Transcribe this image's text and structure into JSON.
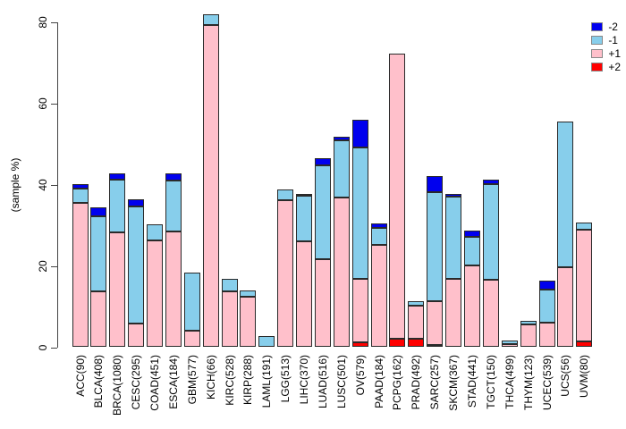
{
  "chart_data": {
    "type": "bar",
    "stacked": true,
    "title": "",
    "xlabel": "",
    "ylabel": "(sample %)",
    "ylim": [
      0,
      80
    ],
    "yticks": [
      0,
      20,
      40,
      60,
      80
    ],
    "grid": false,
    "legend_position": "top-right",
    "legend": [
      {
        "label": "-2",
        "color": "#0000EE"
      },
      {
        "label": "-1",
        "color": "#87CEEB"
      },
      {
        "label": "+1",
        "color": "#FFC0CB"
      },
      {
        "label": "+2",
        "color": "#FF0000"
      }
    ],
    "stack_order_bottom_to_top": [
      "+2",
      "+1",
      "-1",
      "-2"
    ],
    "categories": [
      "ACC(90)",
      "BLCA(408)",
      "BRCA(1080)",
      "CESC(295)",
      "COAD(451)",
      "ESCA(184)",
      "GBM(577)",
      "KICH(66)",
      "KIRC(528)",
      "KIRP(288)",
      "LAML(191)",
      "LGG(513)",
      "LIHC(370)",
      "LUAD(516)",
      "LUSC(501)",
      "OV(579)",
      "PAAD(184)",
      "PCPG(162)",
      "PRAD(492)",
      "SARC(257)",
      "SKCM(367)",
      "STAD(441)",
      "TGCT(150)",
      "THCA(499)",
      "THYM(123)",
      "UCEC(539)",
      "UCS(56)",
      "UVM(80)"
    ],
    "series": [
      {
        "name": "-2",
        "color": "#0000EE",
        "values": [
          1.1,
          2.1,
          1.5,
          1.7,
          0,
          1.9,
          0,
          0,
          0,
          0,
          0,
          0,
          0.5,
          1.8,
          0.9,
          6.8,
          1.1,
          0,
          0,
          4.0,
          0.6,
          1.6,
          1.0,
          0,
          0,
          2.2,
          0,
          0
        ]
      },
      {
        "name": "-1",
        "color": "#87CEEB",
        "values": [
          3.6,
          18.5,
          13.0,
          28.9,
          4.1,
          12.6,
          14.3,
          2.6,
          3.1,
          1.6,
          2.8,
          2.7,
          11.3,
          23.0,
          14.1,
          32.3,
          4.1,
          0,
          1.1,
          26.9,
          20.3,
          7.1,
          23.5,
          0.8,
          1.1,
          8.2,
          35.9,
          1.8
        ]
      },
      {
        "name": "+1",
        "color": "#FFC0CB",
        "values": [
          35.5,
          13.8,
          28.3,
          5.8,
          26.2,
          28.4,
          4.1,
          79.4,
          13.7,
          12.4,
          0,
          36.1,
          26.0,
          21.7,
          36.8,
          15.7,
          25.3,
          70.2,
          8.2,
          10.7,
          16.8,
          20.1,
          16.7,
          0.8,
          5.5,
          6.1,
          19.7,
          27.4
        ]
      },
      {
        "name": "+2",
        "color": "#FF0000",
        "values": [
          0,
          0,
          0,
          0,
          0,
          0,
          0,
          0,
          0,
          0,
          0,
          0,
          0,
          0,
          0,
          1.2,
          0,
          2.2,
          2.0,
          0.6,
          0,
          0,
          0,
          0,
          0,
          0,
          0,
          1.5
        ]
      }
    ]
  }
}
